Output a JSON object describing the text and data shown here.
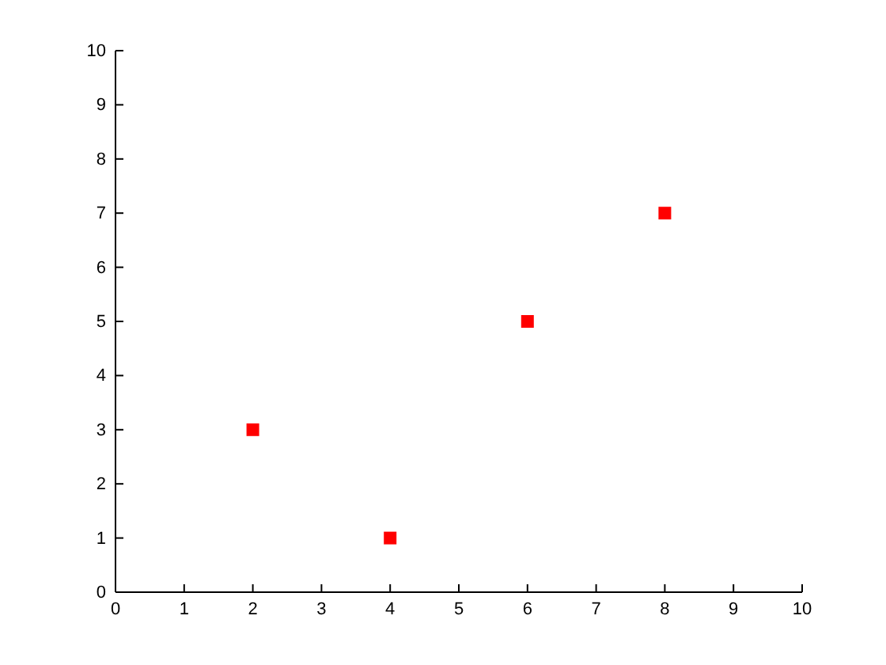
{
  "chart_data": {
    "type": "scatter",
    "x": [
      2,
      4,
      6,
      8
    ],
    "values": [
      3,
      1,
      5,
      7
    ],
    "color": "#ff0000",
    "marker": "square",
    "xlim": [
      0,
      10
    ],
    "ylim": [
      0,
      10
    ],
    "xticks": [
      0,
      1,
      2,
      3,
      4,
      5,
      6,
      7,
      8,
      9,
      10
    ],
    "yticks": [
      0,
      1,
      2,
      3,
      4,
      5,
      6,
      7,
      8,
      9,
      10
    ],
    "grid": false
  }
}
